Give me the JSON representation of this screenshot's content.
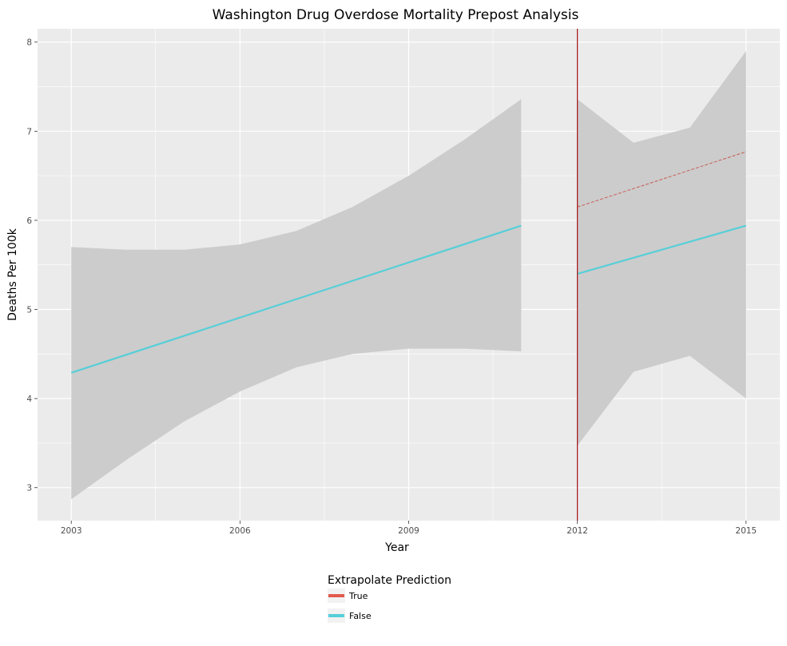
{
  "chart_data": {
    "type": "line",
    "title": "Washington Drug Overdose Mortality Prepost Analysis",
    "xlabel": "Year",
    "ylabel": "Deaths Per 100k",
    "xlim": [
      2002.4,
      2015.6
    ],
    "ylim": [
      2.63,
      8.15
    ],
    "x_ticks": [
      2003,
      2006,
      2009,
      2012,
      2015
    ],
    "y_ticks": [
      3,
      4,
      5,
      6,
      7,
      8
    ],
    "grid": true,
    "vline": {
      "x": 2012,
      "color": "#a50f15"
    },
    "legend": {
      "title": "Extrapolate Prediction",
      "position": "bottom",
      "entries": [
        {
          "label": "True",
          "color": "#e15a4e"
        },
        {
          "label": "False",
          "color": "#56cfd8"
        }
      ]
    },
    "bands": [
      {
        "x": [
          2003,
          2004,
          2005,
          2006,
          2007,
          2008,
          2009,
          2010,
          2011
        ],
        "lower": [
          2.87,
          3.32,
          3.74,
          4.08,
          4.35,
          4.5,
          4.56,
          4.56,
          4.53
        ],
        "upper": [
          5.7,
          5.67,
          5.67,
          5.73,
          5.88,
          6.15,
          6.5,
          6.91,
          7.36
        ]
      },
      {
        "x": [
          2012,
          2013,
          2014,
          2015
        ],
        "lower": [
          3.47,
          4.3,
          4.48,
          4.0
        ],
        "upper": [
          7.36,
          6.87,
          7.04,
          7.9
        ]
      }
    ],
    "series": [
      {
        "name": "False",
        "color": "#56cfd8",
        "dashed": false,
        "width": 2.2,
        "x": [
          2003,
          2011
        ],
        "values": [
          4.29,
          5.94
        ]
      },
      {
        "name": "False",
        "color": "#56cfd8",
        "dashed": false,
        "width": 2.2,
        "x": [
          2012,
          2015
        ],
        "values": [
          5.4,
          5.94
        ]
      },
      {
        "name": "True",
        "color": "#c9675f",
        "dashed": true,
        "width": 1.1,
        "x": [
          2012,
          2015
        ],
        "values": [
          6.15,
          6.77
        ]
      }
    ]
  }
}
